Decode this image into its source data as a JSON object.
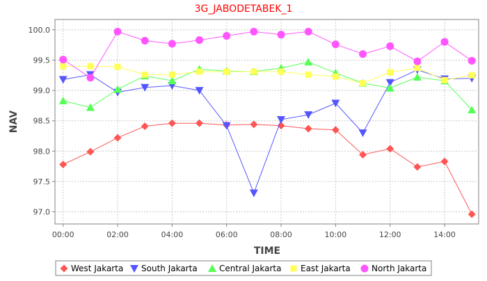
{
  "chart_data": {
    "type": "line",
    "title": "3G_JABODETABEK_1",
    "xlabel": "TIME",
    "ylabel": "NAV",
    "x_tick_labels": [
      "00:00",
      "02:00",
      "04:00",
      "06:00",
      "08:00",
      "10:00",
      "12:00",
      "14:00"
    ],
    "x_tick_hours": [
      0,
      2,
      4,
      6,
      8,
      10,
      12,
      14
    ],
    "y_ticks": [
      97.0,
      97.5,
      98.0,
      98.5,
      99.0,
      99.5,
      100.0
    ],
    "y_tick_labels": [
      "97.0",
      "97.5",
      "98.0",
      "98.5",
      "99.0",
      "99.5",
      "100.0"
    ],
    "xlim": [
      -0.3,
      15.25
    ],
    "ylim": [
      96.8,
      100.17
    ],
    "grid": true,
    "legend_position": "bottom",
    "x_hours": [
      0,
      1,
      2,
      3,
      4,
      5,
      6,
      7,
      8,
      9,
      10,
      11,
      12,
      13,
      14,
      15
    ],
    "series": [
      {
        "name": "West Jakarta",
        "color": "#ff5555",
        "marker": "diamond",
        "values": [
          97.78,
          97.99,
          98.22,
          98.41,
          98.46,
          98.46,
          98.43,
          98.44,
          98.42,
          98.37,
          98.35,
          97.94,
          98.04,
          97.74,
          97.83,
          96.96
        ]
      },
      {
        "name": "South Jakarta",
        "color": "#5555ff",
        "marker": "triangle-down",
        "values": [
          99.18,
          99.26,
          98.97,
          99.05,
          99.08,
          99.0,
          98.42,
          97.31,
          98.52,
          98.6,
          98.79,
          98.3,
          99.13,
          99.34,
          99.19,
          99.2
        ]
      },
      {
        "name": "Central Jakarta",
        "color": "#55ff55",
        "marker": "triangle-up",
        "values": [
          98.83,
          98.72,
          99.02,
          99.24,
          99.16,
          99.35,
          99.32,
          99.31,
          99.37,
          99.47,
          99.29,
          99.12,
          99.04,
          99.22,
          99.16,
          98.68
        ]
      },
      {
        "name": "East Jakarta",
        "color": "#ffff55",
        "marker": "square",
        "values": [
          99.4,
          99.4,
          99.39,
          99.26,
          99.26,
          99.31,
          99.31,
          99.31,
          99.31,
          99.26,
          99.23,
          99.12,
          99.3,
          99.37,
          99.17,
          99.25
        ]
      },
      {
        "name": "North Jakarta",
        "color": "#ff55ff",
        "marker": "circle",
        "values": [
          99.51,
          99.21,
          99.97,
          99.82,
          99.77,
          99.83,
          99.9,
          99.97,
          99.92,
          99.97,
          99.76,
          99.6,
          99.73,
          99.48,
          99.8,
          99.49
        ]
      }
    ]
  }
}
